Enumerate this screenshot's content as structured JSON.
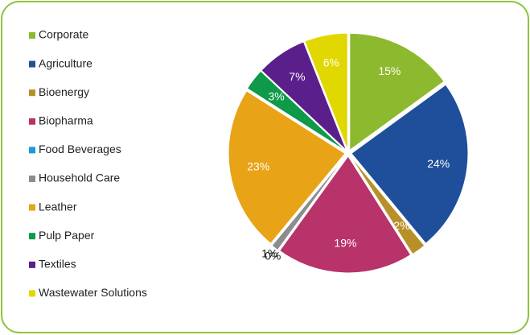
{
  "chart_data": {
    "type": "pie",
    "categories": [
      "Corporate",
      "Agriculture",
      "Bioenergy",
      "Biopharma",
      "Food Beverages",
      "Household Care",
      "Leather",
      "Pulp Paper",
      "Textiles",
      "Wastewater Solutions"
    ],
    "values": [
      15,
      24,
      2,
      19,
      0,
      1,
      23,
      3,
      7,
      6
    ],
    "value_labels": [
      "15%",
      "24%",
      "2%",
      "19%",
      "0%",
      "1%",
      "23%",
      "3%",
      "7%",
      "6%"
    ],
    "colors": [
      "#8db92e",
      "#1f4e9a",
      "#b8902a",
      "#b8336a",
      "#1a9ad6",
      "#8c8c8c",
      "#e8a317",
      "#0e9a48",
      "#5a1f8a",
      "#e0d800"
    ],
    "legend": "left"
  }
}
